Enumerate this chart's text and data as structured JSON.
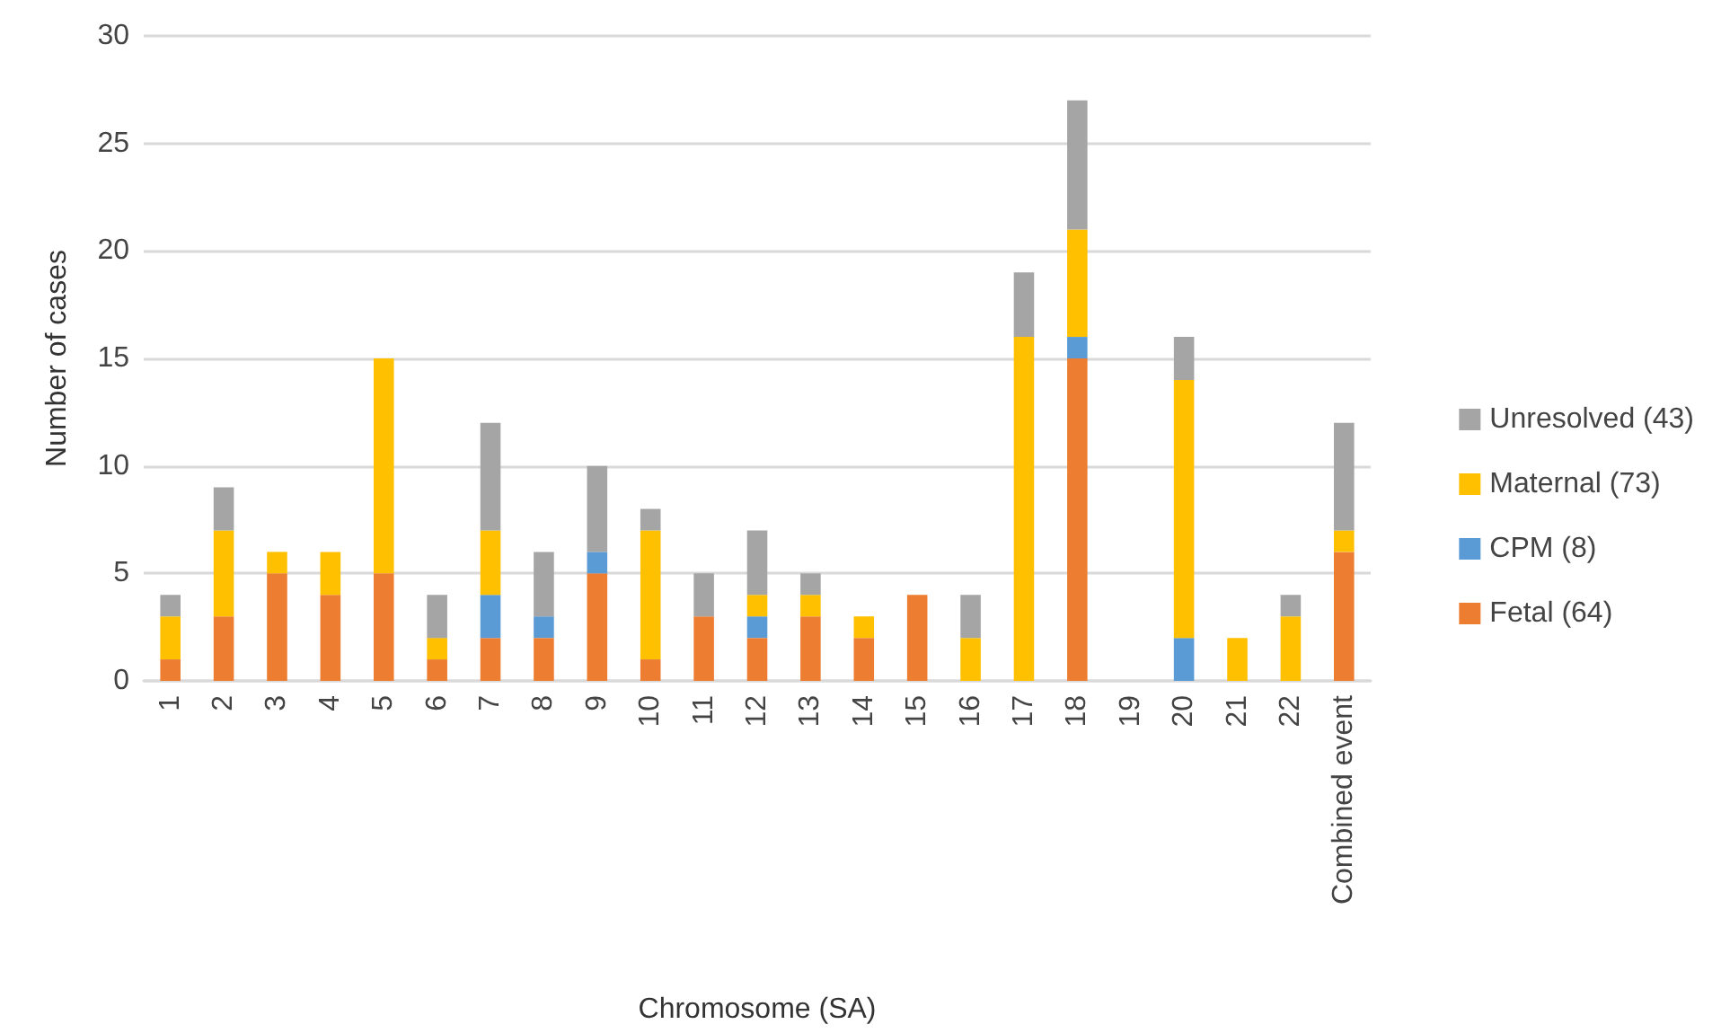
{
  "chart_data": {
    "type": "bar",
    "stacked": true,
    "xlabel": "Chromosome (SA)",
    "ylabel": "Number of cases",
    "categories": [
      "1",
      "2",
      "3",
      "4",
      "5",
      "6",
      "7",
      "8",
      "9",
      "10",
      "11",
      "12",
      "13",
      "14",
      "15",
      "16",
      "17",
      "18",
      "19",
      "20",
      "21",
      "22",
      "Combined event"
    ],
    "series": [
      {
        "name": "Fetal (64)",
        "color": "#ed7d31",
        "values": [
          1,
          3,
          5,
          4,
          5,
          1,
          2,
          2,
          5,
          1,
          3,
          2,
          3,
          2,
          4,
          0,
          0,
          15,
          0,
          0,
          0,
          0,
          6
        ]
      },
      {
        "name": "CPM (8)",
        "color": "#5b9bd5",
        "values": [
          0,
          0,
          0,
          0,
          0,
          0,
          2,
          1,
          1,
          0,
          0,
          1,
          0,
          0,
          0,
          0,
          0,
          1,
          0,
          2,
          0,
          0,
          0
        ]
      },
      {
        "name": "Maternal (73)",
        "color": "#ffc000",
        "values": [
          2,
          4,
          1,
          2,
          10,
          1,
          3,
          0,
          0,
          6,
          0,
          1,
          1,
          1,
          0,
          2,
          16,
          5,
          0,
          12,
          2,
          3,
          1
        ]
      },
      {
        "name": "Unresolved (43)",
        "color": "#a5a5a5",
        "values": [
          1,
          2,
          0,
          0,
          0,
          2,
          5,
          3,
          4,
          1,
          2,
          3,
          1,
          0,
          0,
          2,
          3,
          6,
          0,
          2,
          0,
          1,
          5
        ]
      }
    ],
    "ylim": [
      0,
      30
    ],
    "yticks": [
      0,
      5,
      10,
      15,
      20,
      25,
      30
    ],
    "grid": "y",
    "legend": "right"
  }
}
